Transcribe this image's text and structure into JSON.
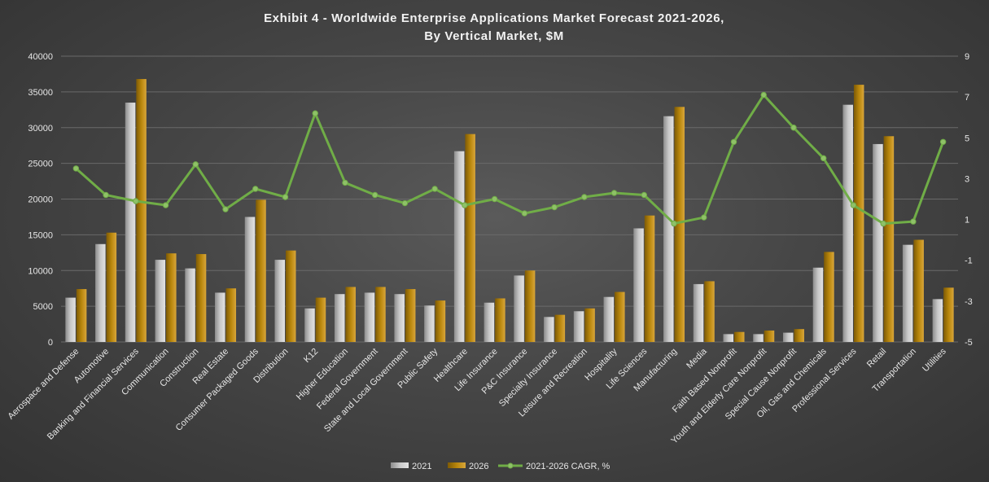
{
  "chart_data": {
    "type": "bar",
    "title": "Exhibit 4 - Worldwide Enterprise Applications Market Forecast 2021-2026,",
    "subtitle": "By Vertical Market, $M",
    "categories": [
      "Aerospace and Defense",
      "Automotive",
      "Banking and Financial Services",
      "Communication",
      "Construction",
      "Real Estate",
      "Consumer Packaged Goods",
      "Distribution",
      "K12",
      "Higher Education",
      "Federal Government",
      "State and Local Government",
      "Public Safety",
      "Healthcare",
      "Life Insurance",
      "P&C Insurance",
      "Specialty Insurance",
      "Leisure and Recreation",
      "Hospitality",
      "Life Sciences",
      "Manufacturing",
      "Media",
      "Faith Based Nonprofit",
      "Youth and Elderly Care Nonprofit",
      "Special Cause Nonprofit",
      "Oil, Gas and Chemicals",
      "Professional Services",
      "Retail",
      "Transportation",
      "Utilities"
    ],
    "series": [
      {
        "name": "2021",
        "type": "bar",
        "axis": "left",
        "color": "#c8c8c8",
        "values": [
          6200,
          13700,
          33500,
          11500,
          10300,
          6900,
          17500,
          11500,
          4700,
          6700,
          6900,
          6700,
          5100,
          26700,
          5500,
          9300,
          3500,
          4300,
          6300,
          15900,
          31600,
          8100,
          1100,
          1100,
          1300,
          10400,
          33200,
          27700,
          13600,
          6000
        ]
      },
      {
        "name": "2026",
        "type": "bar",
        "axis": "left",
        "color": "#b8860b",
        "values": [
          7400,
          15300,
          36800,
          12400,
          12300,
          7500,
          19900,
          12800,
          6200,
          7700,
          7700,
          7400,
          5800,
          29100,
          6100,
          10000,
          3800,
          4700,
          7000,
          17700,
          32900,
          8500,
          1400,
          1600,
          1800,
          12600,
          36000,
          28800,
          14300,
          7600
        ]
      },
      {
        "name": "2021-2026 CAGR, %",
        "type": "line",
        "axis": "right",
        "color": "#70ad47",
        "values": [
          3.5,
          2.2,
          1.9,
          1.7,
          3.7,
          1.5,
          2.5,
          2.1,
          6.2,
          2.8,
          2.2,
          1.8,
          2.5,
          1.7,
          2.0,
          1.3,
          1.6,
          2.1,
          2.3,
          2.2,
          0.8,
          1.1,
          4.8,
          7.1,
          5.5,
          4.0,
          1.7,
          0.8,
          0.9,
          4.8
        ]
      }
    ],
    "y_left": {
      "min": 0,
      "max": 40000,
      "ticks": [
        0,
        5000,
        10000,
        15000,
        20000,
        25000,
        30000,
        35000,
        40000
      ]
    },
    "y_right": {
      "min": -5,
      "max": 9,
      "ticks": [
        -5,
        -3,
        -1,
        1,
        3,
        5,
        7,
        9
      ]
    },
    "grid": true,
    "legend_position": "bottom",
    "legend": [
      "2021",
      "2026",
      "2021-2026 CAGR, %"
    ]
  }
}
